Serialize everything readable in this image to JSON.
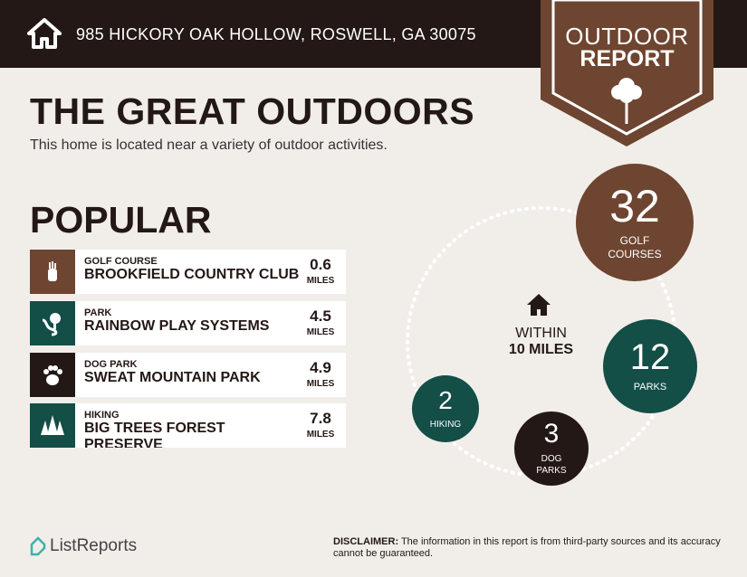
{
  "header": {
    "address": "985 HICKORY OAK HOLLOW, ROSWELL, GA 30075",
    "icon": "home-icon"
  },
  "badge": {
    "line1": "OUTDOOR",
    "line2": "REPORT",
    "icon": "tree-icon"
  },
  "title": "THE GREAT OUTDOORS",
  "subtitle": "This home is located near a variety of outdoor activities.",
  "popular": {
    "heading": "POPULAR",
    "items": [
      {
        "category": "GOLF COURSE",
        "name": "BROOKFIELD COUNTRY CLUB",
        "distance": "0.6",
        "unit": "MILES",
        "icon": "golf-bag-icon",
        "color": "#6e4530"
      },
      {
        "category": "PARK",
        "name": "RAINBOW PLAY SYSTEMS",
        "distance": "4.5",
        "unit": "MILES",
        "icon": "park-icon",
        "color": "#134e47"
      },
      {
        "category": "DOG PARK",
        "name": "SWEAT MOUNTAIN PARK",
        "distance": "4.9",
        "unit": "MILES",
        "icon": "paw-icon",
        "color": "#231815"
      },
      {
        "category": "HIKING",
        "name": "BIG TREES FOREST PRESERVE",
        "distance": "7.8",
        "unit": "MILES",
        "icon": "pine-trees-icon",
        "color": "#134e47"
      }
    ]
  },
  "summary": {
    "within_line1": "WITHIN",
    "within_line2": "10 MILES",
    "counts": [
      {
        "value": "32",
        "label": "GOLF COURSES",
        "color": "#6e4530"
      },
      {
        "value": "12",
        "label": "PARKS",
        "color": "#134e47"
      },
      {
        "value": "3",
        "label": "DOG PARKS",
        "color": "#231815"
      },
      {
        "value": "2",
        "label": "HIKING",
        "color": "#134e47"
      }
    ]
  },
  "footer": {
    "logo": "ListReports",
    "disclaimer_label": "DISCLAIMER:",
    "disclaimer_text": " The information in this report is from third-party sources and its accuracy cannot be guaranteed."
  }
}
